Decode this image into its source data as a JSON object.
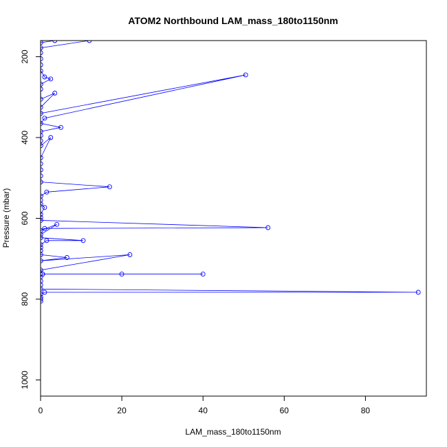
{
  "chart_data": {
    "type": "line",
    "title": "ATOM2 Northbound LAM_mass_180to1150nm",
    "xlabel": "LAM_mass_180to1150nm",
    "ylabel": "Pressure (mbar)",
    "xlim": [
      0,
      95
    ],
    "ylim": [
      1040,
      160
    ],
    "y_reversed": true,
    "x_ticks": [
      0,
      20,
      40,
      60,
      80
    ],
    "y_ticks": [
      200,
      400,
      600,
      800,
      1000
    ],
    "grid": false,
    "legend": "none",
    "series_color": "#0000ff",
    "marker": "open-circle",
    "series": [
      {
        "values": [
          {
            "x": 0.05,
            "y": 805
          },
          {
            "x": 0.02,
            "y": 800
          },
          {
            "x": 0.05,
            "y": 795
          },
          {
            "x": 0.03,
            "y": 788
          },
          {
            "x": 1.0,
            "y": 783
          },
          {
            "x": 93.0,
            "y": 783
          },
          {
            "x": 0.05,
            "y": 775
          },
          {
            "x": 0.03,
            "y": 765
          },
          {
            "x": 0.05,
            "y": 755
          },
          {
            "x": 0.03,
            "y": 745
          },
          {
            "x": 0.5,
            "y": 738
          },
          {
            "x": 20.0,
            "y": 738
          },
          {
            "x": 40.0,
            "y": 738
          },
          {
            "x": 0.5,
            "y": 738
          },
          {
            "x": 0.05,
            "y": 728
          },
          {
            "x": 22.0,
            "y": 690
          },
          {
            "x": 0.05,
            "y": 705
          },
          {
            "x": 6.5,
            "y": 697
          },
          {
            "x": 0.05,
            "y": 690
          },
          {
            "x": 0.03,
            "y": 680
          },
          {
            "x": 0.05,
            "y": 672
          },
          {
            "x": 0.03,
            "y": 665
          },
          {
            "x": 1.5,
            "y": 655
          },
          {
            "x": 10.5,
            "y": 655
          },
          {
            "x": 0.05,
            "y": 648
          },
          {
            "x": 0.03,
            "y": 640
          },
          {
            "x": 4.0,
            "y": 615
          },
          {
            "x": 0.05,
            "y": 630
          },
          {
            "x": 1.0,
            "y": 625
          },
          {
            "x": 56.0,
            "y": 623
          },
          {
            "x": 0.05,
            "y": 605
          },
          {
            "x": 0.05,
            "y": 598
          },
          {
            "x": 0.03,
            "y": 590
          },
          {
            "x": 1.0,
            "y": 573
          },
          {
            "x": 0.05,
            "y": 565
          },
          {
            "x": 0.03,
            "y": 555
          },
          {
            "x": 0.05,
            "y": 545
          },
          {
            "x": 1.5,
            "y": 535
          },
          {
            "x": 17.0,
            "y": 522
          },
          {
            "x": 0.05,
            "y": 510
          },
          {
            "x": 0.03,
            "y": 495
          },
          {
            "x": 0.05,
            "y": 480
          },
          {
            "x": 0.03,
            "y": 465
          },
          {
            "x": 0.05,
            "y": 450
          },
          {
            "x": 2.5,
            "y": 400
          },
          {
            "x": 0.05,
            "y": 420
          },
          {
            "x": 0.03,
            "y": 408
          },
          {
            "x": 0.05,
            "y": 395
          },
          {
            "x": 0.03,
            "y": 385
          },
          {
            "x": 5.0,
            "y": 375
          },
          {
            "x": 0.05,
            "y": 365
          },
          {
            "x": 1.0,
            "y": 352
          },
          {
            "x": 50.5,
            "y": 245
          },
          {
            "x": 0.05,
            "y": 340
          },
          {
            "x": 0.03,
            "y": 325
          },
          {
            "x": 3.5,
            "y": 290
          },
          {
            "x": 0.05,
            "y": 305
          },
          {
            "x": 0.03,
            "y": 280
          },
          {
            "x": 0.05,
            "y": 268
          },
          {
            "x": 2.5,
            "y": 255
          },
          {
            "x": 1.0,
            "y": 250
          },
          {
            "x": 0.05,
            "y": 235
          },
          {
            "x": 0.03,
            "y": 220
          },
          {
            "x": 0.05,
            "y": 205
          },
          {
            "x": 0.03,
            "y": 190
          },
          {
            "x": 0.05,
            "y": 178
          },
          {
            "x": 12.0,
            "y": 160
          },
          {
            "x": 3.5,
            "y": 160
          },
          {
            "x": 0.05,
            "y": 165
          }
        ]
      }
    ]
  }
}
